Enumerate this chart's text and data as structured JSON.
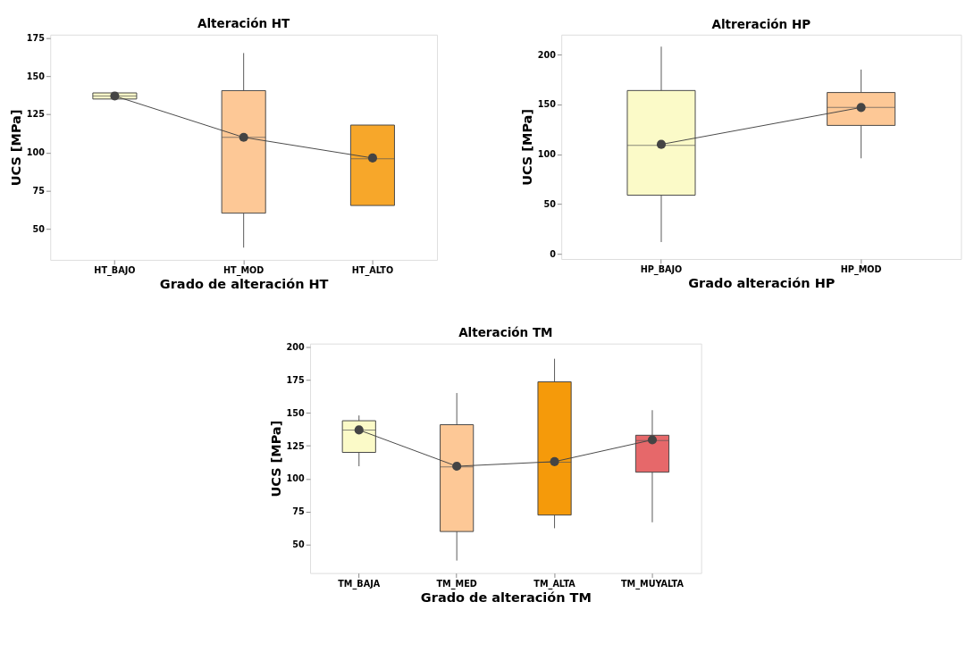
{
  "chart_data": [
    {
      "type": "box",
      "title": "Alteración HT",
      "xlabel": "Grado de alteración HT",
      "ylabel": "UCS [MPa]",
      "categories": [
        "HT_BAJO",
        "HT_MOD",
        "HT_ALTO"
      ],
      "colors": [
        "#fbfac8",
        "#fdc896",
        "#f7a72a"
      ],
      "ylim": [
        30,
        177
      ],
      "yticks": [
        50,
        75,
        100,
        125,
        150,
        175
      ],
      "boxes": [
        {
          "low": 135,
          "q1": 135,
          "median": 137,
          "q3": 139,
          "high": 139
        },
        {
          "low": 38,
          "q1": 60.5,
          "median": 110,
          "q3": 140.5,
          "high": 165
        },
        {
          "low": 65.5,
          "q1": 65.5,
          "median": 96,
          "q3": 118,
          "high": 118
        }
      ],
      "series": [
        {
          "type": "line",
          "color": "#444444",
          "marker": "circle",
          "values": [
            137,
            110,
            96.5
          ],
          "line_style": "solid"
        }
      ],
      "grid": false
    },
    {
      "type": "box",
      "title": "Altreración HP",
      "xlabel": "Grado alteración HP",
      "ylabel": "UCS [MPa]",
      "categories": [
        "HP_BAJO",
        "HP_MOD"
      ],
      "colors": [
        "#fbfac8",
        "#fdc896"
      ],
      "ylim": [
        -5,
        220
      ],
      "yticks": [
        0,
        50,
        100,
        150,
        200
      ],
      "boxes": [
        {
          "low": 12,
          "q1": 59,
          "median": 109,
          "q3": 164,
          "high": 208
        },
        {
          "low": 96,
          "q1": 129,
          "median": 147,
          "q3": 162,
          "high": 185
        }
      ],
      "series": [
        {
          "type": "line",
          "color": "#444444",
          "marker": "circle",
          "values": [
            110,
            147
          ],
          "line_style": "solid"
        }
      ],
      "grid": false
    },
    {
      "type": "box",
      "title": "Alteración TM",
      "xlabel": "Grado de alteración TM",
      "ylabel": "UCS [MPa]",
      "categories": [
        "TM_BAJA",
        "TM_MED",
        "TM_ALTA",
        "TM_MUYALTA"
      ],
      "colors": [
        "#fbfac8",
        "#fdc896",
        "#f59a0a",
        "#e6686a"
      ],
      "ylim": [
        28.5,
        202.5
      ],
      "yticks": [
        50,
        75,
        100,
        125,
        150,
        175,
        200
      ],
      "boxes": [
        {
          "low": 109.5,
          "q1": 120,
          "median": 137,
          "q3": 144,
          "high": 148
        },
        {
          "low": 38,
          "q1": 60,
          "median": 109,
          "q3": 141,
          "high": 165
        },
        {
          "low": 62.5,
          "q1": 72.5,
          "median": 112.5,
          "q3": 173.5,
          "high": 191
        },
        {
          "low": 67,
          "q1": 105,
          "median": 129,
          "q3": 133,
          "high": 152
        }
      ],
      "series": [
        {
          "type": "line",
          "color": "#444444",
          "marker": "circle",
          "values": [
            137,
            109.5,
            113,
            129.5
          ],
          "line_style": "solid"
        }
      ],
      "grid": false
    }
  ]
}
